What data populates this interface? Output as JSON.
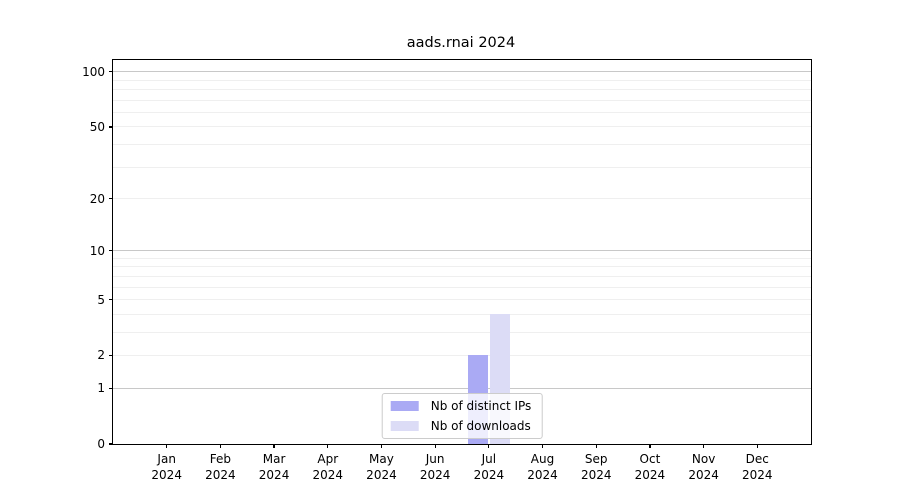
{
  "title": "aads.rnai 2024",
  "chart_data": {
    "type": "bar",
    "title": "aads.rnai 2024",
    "scale": "log1p",
    "categories": [
      "Jan",
      "Feb",
      "Mar",
      "Apr",
      "May",
      "Jun",
      "Jul",
      "Aug",
      "Sep",
      "Oct",
      "Nov",
      "Dec"
    ],
    "year_label": "2024",
    "series": [
      {
        "name": "Nb of distinct IPs",
        "color": "#aaaaf4",
        "values": [
          0,
          0,
          0,
          0,
          0,
          0,
          2,
          0,
          0,
          0,
          0,
          0
        ]
      },
      {
        "name": "Nb of downloads",
        "color": "#dcdcf6",
        "values": [
          0,
          0,
          0,
          0,
          0,
          0,
          4,
          0,
          0,
          0,
          0,
          0
        ]
      }
    ],
    "xlabel": "",
    "ylabel": "",
    "ylim": [
      0,
      116
    ],
    "yticks": [
      0,
      1,
      2,
      5,
      10,
      20,
      50,
      100
    ],
    "major_gridlines": [
      1,
      10,
      100
    ],
    "minor_gridlines": [
      2,
      3,
      4,
      5,
      6,
      7,
      8,
      9,
      20,
      30,
      40,
      50,
      60,
      70,
      80,
      90
    ],
    "grid": true,
    "legend_position": "lower center",
    "colors": {
      "axis": "#000000",
      "grid_major": "#c8c8c8",
      "grid_minor": "#efefef"
    }
  }
}
